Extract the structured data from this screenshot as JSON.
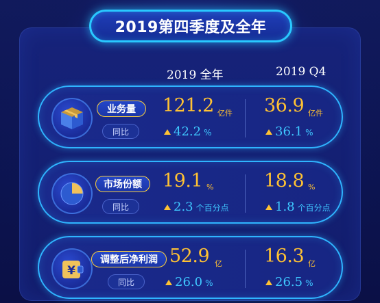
{
  "title": "2019第四季度及全年",
  "columns": [
    "2019 全年",
    "2019 Q4"
  ],
  "rows": [
    {
      "label": "业务量",
      "sub_label": "同比",
      "icon": "package-box-icon",
      "full_year": {
        "value": "121.2",
        "unit": "亿件",
        "growth": "42.2",
        "growth_unit": "%"
      },
      "q4": {
        "value": "36.9",
        "unit": "亿件",
        "growth": "36.1",
        "growth_unit": "%"
      }
    },
    {
      "label": "市场份额",
      "sub_label": "同比",
      "icon": "pie-chart-icon",
      "full_year": {
        "value": "19.1",
        "unit": "%",
        "growth": "2.3",
        "growth_unit": "个百分点"
      },
      "q4": {
        "value": "18.8",
        "unit": "%",
        "growth": "1.8",
        "growth_unit": "个百分点"
      }
    },
    {
      "label": "调整后净利润",
      "sub_label": "同比",
      "icon": "yuan-wallet-icon",
      "full_year": {
        "value": "52.9",
        "unit": "亿",
        "growth": "26.0",
        "growth_unit": "%"
      },
      "q4": {
        "value": "16.3",
        "unit": "亿",
        "growth": "26.5",
        "growth_unit": "%"
      }
    }
  ],
  "colors": {
    "background": "#0b1046",
    "accent_cyan": "#2fb4ff",
    "value_gold": "#ffc233",
    "growth_blue": "#3fc8ff"
  }
}
